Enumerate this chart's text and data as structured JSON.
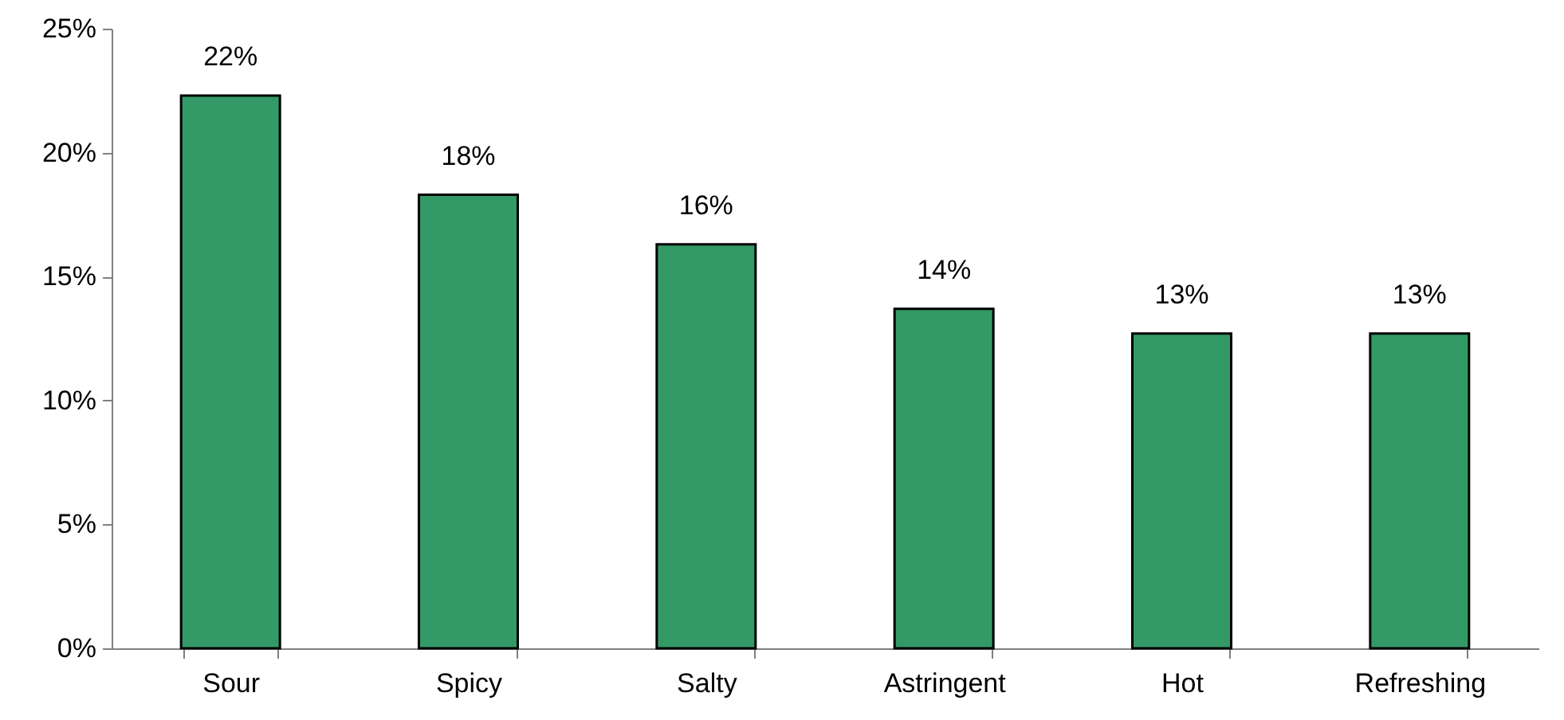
{
  "chart_data": {
    "type": "bar",
    "categories": [
      "Sour",
      "Spicy",
      "Salty",
      "Astringent",
      "Hot",
      "Refreshing"
    ],
    "values": [
      22.3,
      18.3,
      16.3,
      13.7,
      12.7,
      12.7
    ],
    "value_labels": [
      "22%",
      "18%",
      "16%",
      "14%",
      "13%",
      "13%"
    ],
    "color": "#339966",
    "ylim": [
      0,
      25
    ],
    "yticks": [
      {
        "value": 0,
        "label": "0%"
      },
      {
        "value": 5,
        "label": "5%"
      },
      {
        "value": 10,
        "label": "10%"
      },
      {
        "value": 15,
        "label": "15%"
      },
      {
        "value": 20,
        "label": "20%"
      },
      {
        "value": 25,
        "label": "25%"
      }
    ],
    "grid": false
  }
}
